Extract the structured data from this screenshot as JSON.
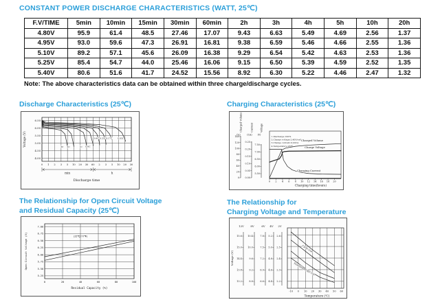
{
  "page": {
    "title": "CONSTANT POWER DISCHARGE CHARACTERISTICS (WATT, 25℃)",
    "note": "Note: The above characteristics data can be obtained within three charge/discharge cycles.",
    "accent_color": "#2b9fd9"
  },
  "table": {
    "headers": [
      "F.V/TIME",
      "5min",
      "10min",
      "15min",
      "30min",
      "60min",
      "2h",
      "3h",
      "4h",
      "5h",
      "10h",
      "20h"
    ],
    "rows": [
      [
        "4.80V",
        "95.9",
        "61.4",
        "48.5",
        "27.46",
        "17.07",
        "9.43",
        "6.63",
        "5.49",
        "4.69",
        "2.56",
        "1.37"
      ],
      [
        "4.95V",
        "93.0",
        "59.6",
        "47.3",
        "26.91",
        "16.81",
        "9.38",
        "6.59",
        "5.46",
        "4.66",
        "2.55",
        "1.36"
      ],
      [
        "5.10V",
        "89.2",
        "57.1",
        "45.6",
        "26.09",
        "16.38",
        "9.29",
        "6.54",
        "5.42",
        "4.63",
        "2.53",
        "1.36"
      ],
      [
        "5.25V",
        "85.4",
        "54.7",
        "44.0",
        "25.46",
        "16.06",
        "9.15",
        "6.50",
        "5.39",
        "4.59",
        "2.52",
        "1.35"
      ],
      [
        "5.40V",
        "80.6",
        "51.6",
        "41.7",
        "24.52",
        "15.56",
        "8.92",
        "6.30",
        "5.22",
        "4.46",
        "2.47",
        "1.32"
      ]
    ]
  },
  "sections": [
    {
      "title": "Discharge Characteristics (25℃)"
    },
    {
      "title": "Charging Characteristics (25℃)"
    },
    {
      "title": "The Relationship for Open Circuit Voltage\nand Residual Capacity (25℃)"
    },
    {
      "title": "The Relationship for\nCharging Voltage and Temperature"
    }
  ],
  "chart_data": [
    {
      "type": "line",
      "title": "Discharge Characteristics (25℃)",
      "ylabel": "Voltage (V)",
      "xlabel": "Discharge time",
      "y_ticks": [
        6.5,
        6.0,
        5.5,
        5.0,
        4.5,
        4.0
      ],
      "x_ticks": [
        "0",
        "1",
        "2",
        "3",
        "5",
        "10",
        "20",
        "30",
        "60",
        "2",
        "3",
        "5",
        "10",
        "20",
        "30"
      ],
      "x_units": [
        "min",
        "h"
      ],
      "ylim": [
        3.8,
        6.7
      ],
      "series": [
        {
          "name": "3C",
          "points": [
            [
              0,
              6.4
            ],
            [
              0.15,
              6.02
            ],
            [
              1,
              5.97
            ],
            [
              2,
              5.93
            ],
            [
              3,
              5.85
            ],
            [
              3.6,
              5.6
            ],
            [
              3.85,
              5.1
            ],
            [
              4.0,
              4.78
            ]
          ],
          "label_at": [
            3.15,
            4.7
          ]
        },
        {
          "name": "2C",
          "points": [
            [
              0,
              6.42
            ],
            [
              0.2,
              6.08
            ],
            [
              1,
              6.03
            ],
            [
              3,
              5.98
            ],
            [
              4,
              5.9
            ],
            [
              4.6,
              5.6
            ],
            [
              4.85,
              5.1
            ],
            [
              5.0,
              4.78
            ]
          ],
          "label_at": [
            4.15,
            4.7
          ]
        },
        {
          "name": "1C",
          "points": [
            [
              0,
              6.45
            ],
            [
              0.25,
              6.15
            ],
            [
              2,
              6.1
            ],
            [
              4,
              6.05
            ],
            [
              5.5,
              5.95
            ],
            [
              6.5,
              5.7
            ],
            [
              6.85,
              5.15
            ],
            [
              7.0,
              4.8
            ]
          ],
          "label_at": [
            6.1,
            4.7
          ]
        },
        {
          "name": "0.6C",
          "points": [
            [
              0,
              6.46
            ],
            [
              0.3,
              6.2
            ],
            [
              2,
              6.16
            ],
            [
              5,
              6.1
            ],
            [
              6.5,
              6.0
            ],
            [
              7.5,
              5.7
            ],
            [
              7.9,
              5.1
            ],
            [
              8.05,
              4.84
            ]
          ],
          "label_at": [
            7.2,
            4.72
          ]
        },
        {
          "name": "0.4C",
          "points": [
            [
              0,
              6.47
            ],
            [
              0.4,
              6.25
            ],
            [
              3,
              6.2
            ],
            [
              6,
              6.12
            ],
            [
              7.8,
              6.0
            ],
            [
              8.6,
              5.6
            ],
            [
              8.95,
              5.12
            ],
            [
              9.05,
              4.88
            ]
          ],
          "label_at": [
            8.55,
            5.28
          ]
        },
        {
          "name": "0.25C",
          "points": [
            [
              0,
              6.48
            ],
            [
              0.5,
              6.3
            ],
            [
              4,
              6.24
            ],
            [
              7,
              6.15
            ],
            [
              8.8,
              6.0
            ],
            [
              9.6,
              5.6
            ],
            [
              9.95,
              5.2
            ],
            [
              10.05,
              4.92
            ]
          ],
          "label_at": [
            9.55,
            5.28
          ]
        },
        {
          "name": "0.17C",
          "points": [
            [
              0,
              6.49
            ],
            [
              0.5,
              6.33
            ],
            [
              5,
              6.27
            ],
            [
              8,
              6.18
            ],
            [
              9.8,
              6.0
            ],
            [
              10.6,
              5.6
            ],
            [
              10.95,
              5.25
            ]
          ],
          "label_at": [
            10.5,
            5.28
          ]
        },
        {
          "name": "0.05C",
          "points": [
            [
              0,
              6.5
            ],
            [
              0.6,
              6.38
            ],
            [
              6,
              6.3
            ],
            [
              9,
              6.22
            ],
            [
              11.5,
              6.05
            ],
            [
              12.5,
              5.7
            ],
            [
              12.95,
              5.32
            ],
            [
              13.1,
              5.12
            ]
          ],
          "label_at": [
            12.35,
            5.28
          ]
        }
      ]
    },
    {
      "type": "line",
      "title": "Charging Characteristics (25℃)",
      "xlabel": "Charging time(hours)",
      "x_ticks": [
        0,
        2,
        4,
        6,
        8,
        10,
        12,
        14,
        16,
        18,
        20
      ],
      "axes": [
        {
          "name": "Charged Volume",
          "unit": "(%)",
          "ticks": [
            140,
            120,
            100,
            80,
            60,
            40,
            20,
            0
          ]
        },
        {
          "name": "Current",
          "unit": "(CA)",
          "ticks": [
            0.25,
            0.2,
            0.15,
            0.1,
            0.05,
            0
          ]
        },
        {
          "name": "Voltage",
          "unit": "(V)",
          "ticks": [
            7.5,
            7.0,
            6.5,
            6.0,
            5.5
          ]
        }
      ],
      "legend": [
        "1.Discharge:100%",
        "2.Charge voltage:2.40V/cell",
        "3.Charge current:0.20CA",
        "4.Temperature:25℃"
      ],
      "series": [
        {
          "name": "Charged Volume",
          "scale": "volume",
          "points": [
            [
              0,
              0
            ],
            [
              3.8,
              95
            ],
            [
              5,
              101
            ],
            [
              8,
              107
            ],
            [
              12,
              111
            ],
            [
              18,
              114
            ],
            [
              22,
              116
            ]
          ],
          "label_at": [
            120,
            43
          ]
        },
        {
          "name": "Charge Voltage",
          "scale": "voltage",
          "points": [
            [
              0,
              6.3
            ],
            [
              1.5,
              6.42
            ],
            [
              3,
              6.52
            ],
            [
              3.7,
              6.75
            ],
            [
              4,
              6.98
            ],
            [
              4.5,
              7.03
            ],
            [
              6,
              7.06
            ],
            [
              22,
              7.09
            ]
          ],
          "label_at": [
            124,
            53
          ]
        },
        {
          "name": "Charging Current",
          "scale": "current",
          "points": [
            [
              0,
              0.2
            ],
            [
              3.7,
              0.2
            ],
            [
              4.3,
              0.125
            ],
            [
              5.5,
              0.08
            ],
            [
              7,
              0.055
            ],
            [
              9,
              0.04
            ],
            [
              12,
              0.03
            ],
            [
              16,
              0.026
            ],
            [
              22,
              0.024
            ]
          ],
          "label_at": [
            115,
            87
          ]
        }
      ]
    },
    {
      "type": "line",
      "title": "The Relationship for Open Circuit Voltage and Residual Capacity (25℃)",
      "ylabel": "Open Circuit Voltage (V)",
      "xlabel": "Residual Capacity (%)",
      "y_ticks": [
        7.0,
        6.75,
        6.5,
        6.25,
        6.0,
        5.75,
        5.5,
        5.25
      ],
      "x_ticks": [
        0,
        20,
        40,
        60,
        80,
        100
      ],
      "annotation": "(25℃/77℉)",
      "series": [
        {
          "name": "upper-line",
          "points": [
            [
              0,
              5.93
            ],
            [
              100,
              6.55
            ]
          ]
        },
        {
          "name": "lower-line",
          "points": [
            [
              0,
              5.8
            ],
            [
              100,
              6.48
            ]
          ]
        }
      ]
    },
    {
      "type": "line",
      "title": "The Relationship for Charging Voltage and Temperature",
      "ylabel": "Voltage (V)",
      "xlabel": "Temperature (℃)",
      "x_ticks": [
        -10,
        0,
        10,
        20,
        30,
        40,
        50,
        60
      ],
      "scales": [
        {
          "name": "12V",
          "ticks": [
            15.6,
            15.0,
            14.4,
            13.8,
            13.2
          ]
        },
        {
          "name": "8V",
          "ticks": [
            10.4,
            10.0,
            9.6,
            9.2,
            8.8
          ]
        },
        {
          "name": "6V",
          "ticks": [
            7.8,
            7.5,
            7.2,
            6.9,
            6.6
          ]
        },
        {
          "name": "4V",
          "ticks": [
            5.2,
            5.0,
            4.8,
            4.6,
            4.4
          ]
        },
        {
          "name": "2V",
          "ticks": [
            2.6,
            2.5,
            2.4,
            2.3,
            2.2
          ]
        }
      ],
      "bands": [
        {
          "name": "Cycle Use",
          "upper": [
            [
              -10,
              2.625
            ],
            [
              20,
              2.47
            ],
            [
              50,
              2.335
            ]
          ],
          "lower": [
            [
              -10,
              2.555
            ],
            [
              20,
              2.41
            ],
            [
              50,
              2.275
            ]
          ],
          "label_at": [
            12,
            2.475
          ],
          "label_rot": 33
        },
        {
          "name": "Float(Stand-by) Use",
          "upper": [
            [
              -10,
              2.46
            ],
            [
              10,
              2.36
            ],
            [
              30,
              2.275
            ],
            [
              50,
              2.225
            ]
          ],
          "lower": [
            [
              -10,
              2.4
            ],
            [
              10,
              2.31
            ],
            [
              30,
              2.235
            ],
            [
              50,
              2.19
            ]
          ],
          "label_at": [
            8,
            2.3
          ],
          "label_rot": 30
        }
      ]
    }
  ]
}
